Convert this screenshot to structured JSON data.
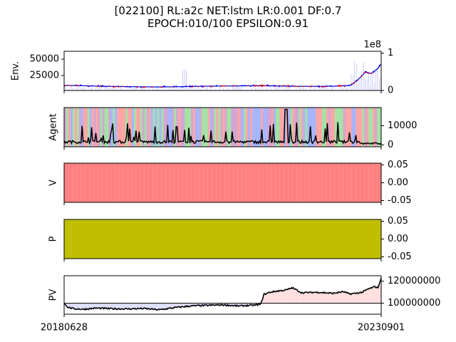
{
  "figure": {
    "title_line1": "[022100] RL:a2c NET:lstm LR:0.001 DF:0.7",
    "title_line2": "EPOCH:010/100 EPSILON:0.91"
  },
  "chart_data": [
    {
      "type": "line",
      "panel": "env",
      "ylabel": "Env.",
      "ylim": [
        2000,
        62000
      ],
      "yticks": [
        25000,
        50000
      ],
      "secondary_axis": {
        "scale_label": "1e8",
        "ylim": [
          0,
          1.05
        ],
        "yticks": [
          0,
          1
        ]
      },
      "series": [
        {
          "role": "price",
          "color": "#0000cc",
          "x": [
            0,
            0.05,
            0.1,
            0.15,
            0.2,
            0.25,
            0.3,
            0.35,
            0.4,
            0.45,
            0.5,
            0.55,
            0.6,
            0.65,
            0.7,
            0.75,
            0.8,
            0.85,
            0.9,
            0.91,
            0.93,
            0.95,
            0.97,
            0.99,
            1.0
          ],
          "y": [
            9800,
            9400,
            8800,
            8200,
            7900,
            7600,
            7400,
            7700,
            8100,
            8600,
            8800,
            9000,
            9300,
            9100,
            8700,
            8400,
            8300,
            8600,
            9500,
            12000,
            20000,
            30000,
            28000,
            36000,
            43000
          ]
        }
      ],
      "colors": {
        "buy": "#ff0000",
        "sell": "#0000ff",
        "volume": "#8888ff"
      }
    },
    {
      "type": "area",
      "panel": "agent",
      "ylabel": "Agent",
      "ylim": [
        -1000,
        19500
      ],
      "yticks": [
        0,
        10000
      ],
      "colors": {
        "line": "#000000",
        "stripe_a": "#ff9999",
        "stripe_b": "#99aaff",
        "stripe_c": "#99dd99",
        "stripe_d": "#cc99cc"
      }
    },
    {
      "type": "area",
      "panel": "V",
      "ylabel": "V",
      "ylim": [
        -0.055,
        0.055
      ],
      "yticks": [
        "0.05",
        "0.00",
        "-0.05"
      ],
      "colors": {
        "fill": "#ff8080"
      }
    },
    {
      "type": "area",
      "panel": "P",
      "ylabel": "P",
      "ylim": [
        -0.055,
        0.055
      ],
      "yticks": [
        "0.05",
        "0.00",
        "-0.05"
      ],
      "colors": {
        "fill": "#bfbf00"
      }
    },
    {
      "type": "line",
      "panel": "pv",
      "ylabel": "PV",
      "ylim": [
        90000000,
        125000000
      ],
      "yticks": [
        "100000000",
        "120000000"
      ],
      "baseline": 100000000,
      "xticks": [
        "20180628",
        "20230901"
      ],
      "series": [
        {
          "role": "portfolio_value",
          "color": "#000000",
          "x": [
            0,
            0.01,
            0.03,
            0.06,
            0.1,
            0.15,
            0.2,
            0.25,
            0.3,
            0.35,
            0.4,
            0.45,
            0.5,
            0.55,
            0.6,
            0.62,
            0.63,
            0.65,
            0.67,
            0.7,
            0.72,
            0.75,
            0.8,
            0.85,
            0.88,
            0.9,
            0.92,
            0.94,
            0.96,
            0.98,
            0.99,
            1.0
          ],
          "y": [
            100000000,
            96500000,
            95000000,
            94500000,
            95500000,
            95000000,
            94800000,
            95200000,
            94000000,
            96000000,
            97500000,
            98000000,
            98500000,
            97500000,
            98200000,
            99000000,
            108000000,
            110000000,
            111000000,
            112000000,
            114000000,
            109500000,
            110000000,
            109000000,
            110500000,
            108500000,
            109000000,
            110000000,
            113000000,
            115000000,
            114000000,
            123000000
          ]
        }
      ],
      "colors": {
        "above": "#ffdddd",
        "below": "#ddddff",
        "baseline": "#000000"
      }
    }
  ]
}
